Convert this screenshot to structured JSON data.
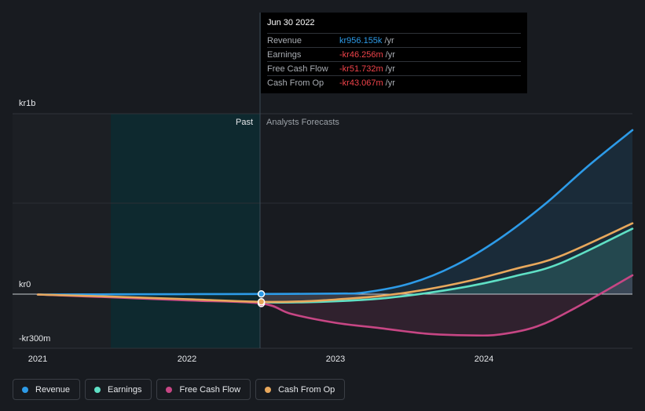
{
  "tooltip": {
    "date": "Jun 30 2022",
    "rows": [
      {
        "name": "Revenue",
        "value": "kr956.155k",
        "unit": "/yr",
        "color": "#2d9be8"
      },
      {
        "name": "Earnings",
        "value": "-kr46.256m",
        "unit": "/yr",
        "color": "#f0434a"
      },
      {
        "name": "Free Cash Flow",
        "value": "-kr51.732m",
        "unit": "/yr",
        "color": "#f0434a"
      },
      {
        "name": "Cash From Op",
        "value": "-kr43.067m",
        "unit": "/yr",
        "color": "#f0434a"
      }
    ]
  },
  "regions": {
    "past": "Past",
    "forecast": "Analysts Forecasts"
  },
  "legend": [
    {
      "name": "Revenue",
      "color": "#2d9be8"
    },
    {
      "name": "Earnings",
      "color": "#5fe0c5"
    },
    {
      "name": "Free Cash Flow",
      "color": "#c74684"
    },
    {
      "name": "Cash From Op",
      "color": "#e8a85c"
    }
  ],
  "chart_data": {
    "type": "line",
    "y_unit": "kr",
    "y_tick_labels": [
      "kr1b",
      "kr0",
      "-kr300m"
    ],
    "x_tick_labels": [
      "2021",
      "2022",
      "2023",
      "2024"
    ],
    "xlim": [
      2021.0,
      2024.99
    ],
    "ylim": [
      -300,
      1000
    ],
    "past_end": 2022.5,
    "shaded_past_start": 2021.49,
    "series": [
      {
        "name": "Revenue",
        "color": "#2d9be8",
        "points": [
          [
            2021.0,
            -2
          ],
          [
            2021.5,
            -1
          ],
          [
            2022.0,
            0
          ],
          [
            2022.5,
            1
          ],
          [
            2023.0,
            3
          ],
          [
            2023.2,
            10
          ],
          [
            2023.5,
            60
          ],
          [
            2023.8,
            160
          ],
          [
            2024.1,
            310
          ],
          [
            2024.4,
            500
          ],
          [
            2024.7,
            720
          ],
          [
            2024.99,
            915
          ]
        ]
      },
      {
        "name": "Earnings",
        "color": "#5fe0c5",
        "points": [
          [
            2021.0,
            -2
          ],
          [
            2021.5,
            -15
          ],
          [
            2022.0,
            -30
          ],
          [
            2022.5,
            -46
          ],
          [
            2022.8,
            -45
          ],
          [
            2023.0,
            -40
          ],
          [
            2023.3,
            -25
          ],
          [
            2023.6,
            5
          ],
          [
            2023.9,
            45
          ],
          [
            2024.2,
            100
          ],
          [
            2024.5,
            170
          ],
          [
            2024.99,
            365
          ]
        ]
      },
      {
        "name": "Free Cash Flow",
        "color": "#c74684",
        "points": [
          [
            2021.0,
            -2
          ],
          [
            2021.5,
            -18
          ],
          [
            2022.0,
            -35
          ],
          [
            2022.5,
            -52
          ],
          [
            2022.7,
            -110
          ],
          [
            2023.0,
            -160
          ],
          [
            2023.3,
            -190
          ],
          [
            2023.6,
            -220
          ],
          [
            2023.9,
            -230
          ],
          [
            2024.1,
            -225
          ],
          [
            2024.35,
            -180
          ],
          [
            2024.6,
            -80
          ],
          [
            2024.99,
            105
          ]
        ]
      },
      {
        "name": "Cash From Op",
        "color": "#e8a85c",
        "points": [
          [
            2021.0,
            -2
          ],
          [
            2021.5,
            -14
          ],
          [
            2022.0,
            -28
          ],
          [
            2022.5,
            -43
          ],
          [
            2022.8,
            -40
          ],
          [
            2023.0,
            -30
          ],
          [
            2023.3,
            -10
          ],
          [
            2023.6,
            25
          ],
          [
            2023.9,
            75
          ],
          [
            2024.2,
            140
          ],
          [
            2024.5,
            210
          ],
          [
            2024.99,
            395
          ]
        ]
      }
    ]
  }
}
